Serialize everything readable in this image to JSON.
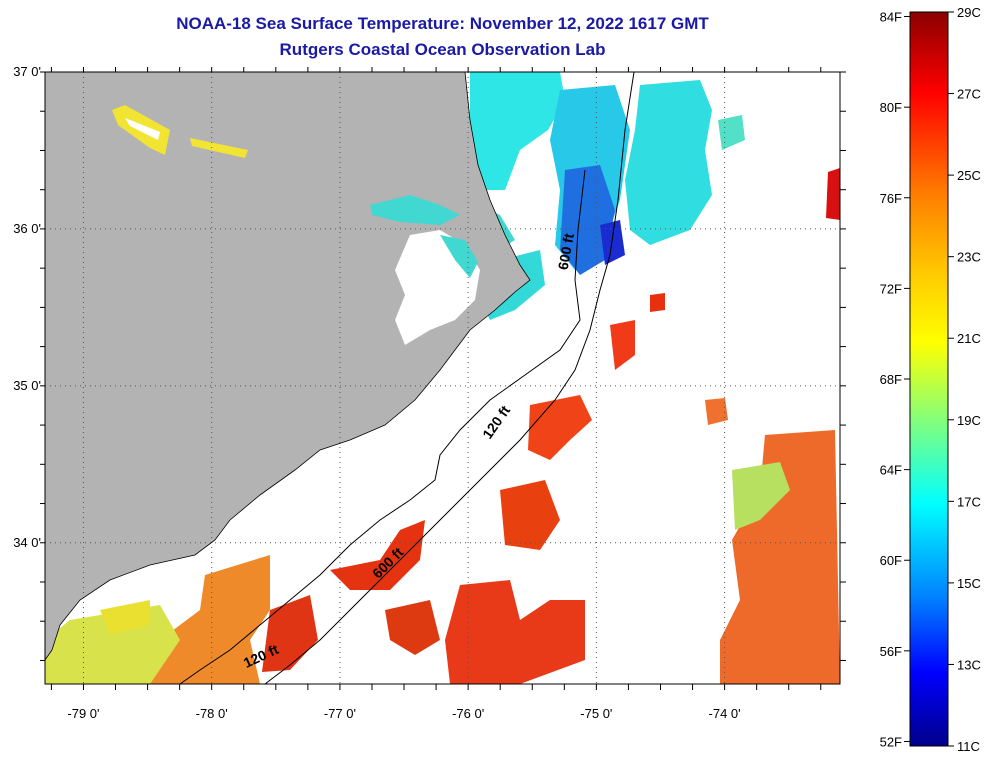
{
  "title": "NOAA-18 Sea Surface Temperature:  November 12, 2022 1617 GMT",
  "subtitle": "Rutgers Coastal Ocean Observation Lab",
  "map": {
    "lon_range": [
      -79.3,
      -73.1
    ],
    "lat_range": [
      33.1,
      37.0
    ],
    "lat_ticks": [
      {
        "value": 37.0,
        "label": "37 0'"
      },
      {
        "value": 36.0,
        "label": "36 0'"
      },
      {
        "value": 35.0,
        "label": "35 0'"
      },
      {
        "value": 34.0,
        "label": "34 0'"
      }
    ],
    "lon_ticks": [
      {
        "value": -79.0,
        "label": "-79 0'"
      },
      {
        "value": -78.0,
        "label": "-78 0'"
      },
      {
        "value": -77.0,
        "label": "-77 0'"
      },
      {
        "value": -76.0,
        "label": "-76 0'"
      },
      {
        "value": -75.0,
        "label": "-75 0'"
      },
      {
        "value": -74.0,
        "label": "-74 0'"
      }
    ],
    "contour_labels": [
      {
        "label": "600 ft",
        "lon": -75.2,
        "lat": 35.85
      },
      {
        "label": "120 ft",
        "lon": -75.75,
        "lat": 34.75
      },
      {
        "label": "600 ft",
        "lon": -76.6,
        "lat": 33.85
      },
      {
        "label": "120 ft",
        "lon": -77.6,
        "lat": 33.25
      }
    ],
    "land_color": "#b3b3b3",
    "no_data_color": "#ffffff"
  },
  "colorbar": {
    "celsius_range": [
      11,
      29
    ],
    "fahrenheit_labels": [
      "84F",
      "80F",
      "76F",
      "72F",
      "68F",
      "64F",
      "60F",
      "56F",
      "52F"
    ],
    "fahrenheit_values": [
      84,
      80,
      76,
      72,
      68,
      64,
      60,
      56,
      52
    ],
    "celsius_labels": [
      "29C",
      "27C",
      "25C",
      "23C",
      "21C",
      "19C",
      "17C",
      "15C",
      "13C",
      "11C"
    ],
    "celsius_values": [
      29,
      27,
      25,
      23,
      21,
      19,
      17,
      15,
      13,
      11
    ],
    "colors": [
      "#8b0000",
      "#ff0000",
      "#ff7f00",
      "#ffcc00",
      "#ffff00",
      "#7fff7f",
      "#00ffff",
      "#007fff",
      "#0000ff",
      "#00008b"
    ]
  }
}
